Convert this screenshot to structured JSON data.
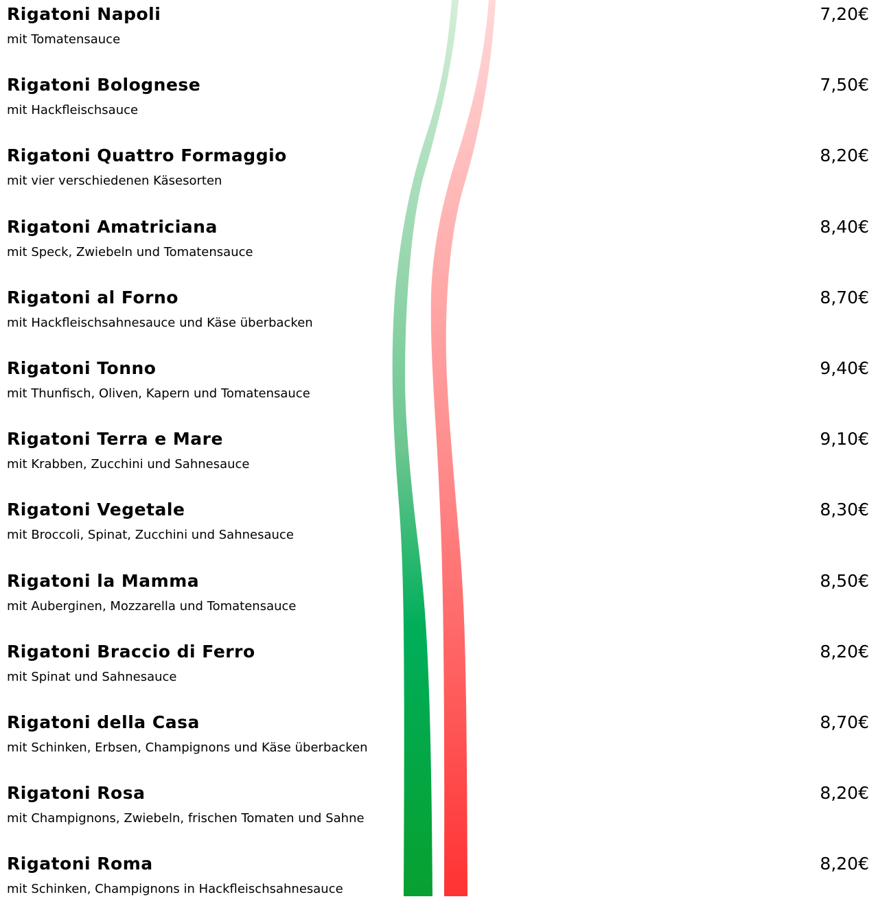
{
  "items": [
    {
      "name": "Rigatoni Napoli",
      "description": "mit Tomatensauce",
      "price": "7,20€"
    },
    {
      "name": "Rigatoni Bolognese",
      "description": "mit Hackfleischsauce",
      "price": "7,50€"
    },
    {
      "name": "Rigatoni Quattro Formaggio",
      "description": "mit vier verschiedenen Käsesorten",
      "price": "8,20€"
    },
    {
      "name": "Rigatoni Amatriciana",
      "description": "mit Speck, Zwiebeln und Tomatensauce",
      "price": "8,40€"
    },
    {
      "name": "Rigatoni al Forno",
      "description": "mit Hackfleischsahnesauce und Käse überbacken",
      "price": "8,70€"
    },
    {
      "name": "Rigatoni Tonno",
      "description": "mit Thunfisch, Oliven, Kapern und Tomatensauce",
      "price": "9,40€"
    },
    {
      "name": "Rigatoni Terra e Mare",
      "description": "mit Krabben, Zucchini und Sahnesauce",
      "price": "9,10€"
    },
    {
      "name": "Rigatoni Vegetale",
      "description": "mit Broccoli, Spinat, Zucchini und Sahnesauce",
      "price": "8,30€"
    },
    {
      "name": "Rigatoni la Mamma",
      "description": "mit Auberginen, Mozzarella und Tomatensauce",
      "price": "8,50€"
    },
    {
      "name": "Rigatoni Braccio di Ferro",
      "description": "mit Spinat und Sahnesauce",
      "price": "8,20€"
    },
    {
      "name": "Rigatoni della Casa",
      "description": "mit Schinken, Erbsen, Champignons und Käse überbacken",
      "price": "8,70€"
    },
    {
      "name": "Rigatoni Rosa",
      "description": "mit Champignons, Zwiebeln, frischen Tomaten und Sahne",
      "price": "8,20€"
    },
    {
      "name": "Rigatoni Roma",
      "description": "mit Schinken, Champignons in Hackfleischsahnesauce",
      "price": "8,20€"
    }
  ]
}
